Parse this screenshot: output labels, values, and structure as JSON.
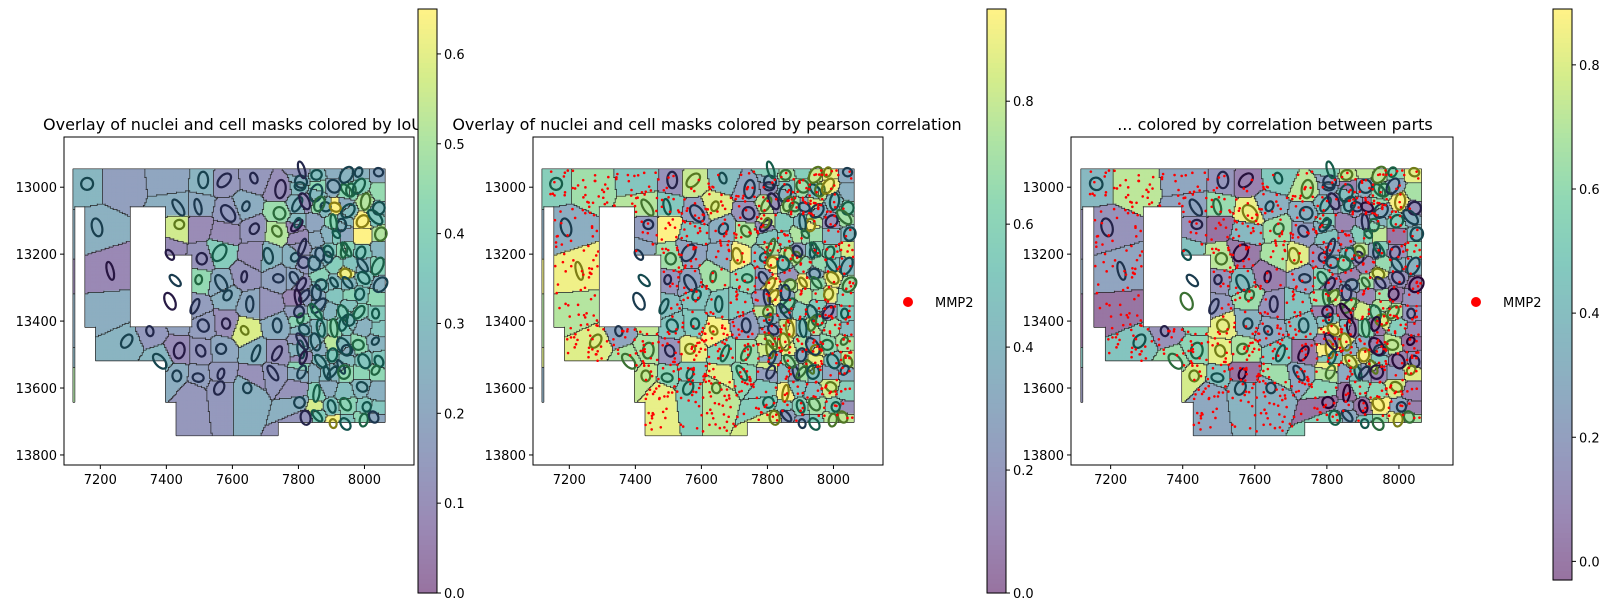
{
  "chart_data": [
    {
      "type": "heatmap",
      "title": "Overlay of nuclei and cell masks colored by IoU",
      "xlabel": "",
      "ylabel": "",
      "xlim": [
        7090,
        8150
      ],
      "ylim": [
        13830,
        12850
      ],
      "xticks": [
        7200,
        7400,
        7600,
        7800,
        8000
      ],
      "yticks": [
        13000,
        13200,
        13400,
        13600,
        13800
      ],
      "colorbar": {
        "min": 0.0,
        "max": 0.65,
        "ticks": [
          0.0,
          0.1,
          0.2,
          0.3,
          0.4,
          0.5,
          0.6
        ]
      },
      "colormap": "viridis",
      "alpha": 0.55,
      "value_range": [
        0.0,
        0.65
      ],
      "legend": null,
      "grid": false
    },
    {
      "type": "heatmap",
      "title": "Overlay of nuclei and cell masks colored by pearson correlation",
      "xlabel": "",
      "ylabel": "",
      "xlim": [
        7090,
        8150
      ],
      "ylim": [
        13830,
        12850
      ],
      "xticks": [
        7200,
        7400,
        7600,
        7800,
        8000
      ],
      "yticks": [
        13000,
        13200,
        13400,
        13600,
        13800
      ],
      "colorbar": {
        "min": 0.0,
        "max": 0.95,
        "ticks": [
          0.0,
          0.2,
          0.4,
          0.6,
          0.8
        ]
      },
      "colormap": "viridis",
      "alpha": 0.55,
      "value_range": [
        0.15,
        0.95
      ],
      "legend": {
        "position": "right",
        "entries": [
          {
            "label": "MMP2",
            "color": "#ff0000"
          }
        ]
      },
      "points_series": "MMP2",
      "grid": false
    },
    {
      "type": "heatmap",
      "title": "... colored by correlation between parts",
      "xlabel": "",
      "ylabel": "",
      "xlim": [
        7090,
        8150
      ],
      "ylim": [
        13830,
        12850
      ],
      "xticks": [
        7200,
        7400,
        7600,
        7800,
        8000
      ],
      "yticks": [
        13000,
        13200,
        13400,
        13600,
        13800
      ],
      "colorbar": {
        "min": -0.03,
        "max": 0.89,
        "ticks": [
          0.0,
          0.2,
          0.4,
          0.6,
          0.8
        ]
      },
      "colormap": "viridis",
      "alpha": 0.55,
      "value_range": [
        -0.03,
        0.89
      ],
      "legend": {
        "position": "right",
        "entries": [
          {
            "label": "MMP2",
            "color": "#ff0000"
          }
        ]
      },
      "points_series": "MMP2",
      "grid": false
    }
  ]
}
